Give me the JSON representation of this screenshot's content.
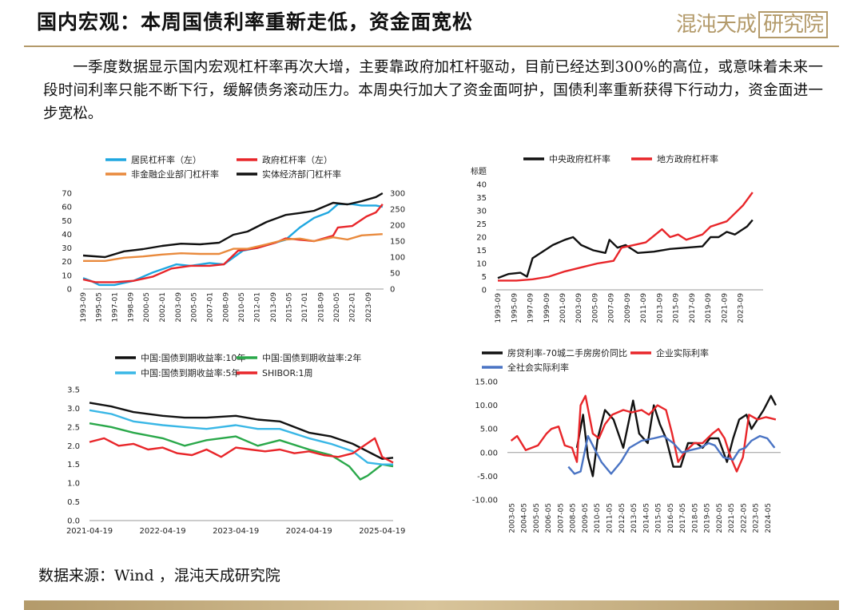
{
  "header": {
    "title": "国内宏观：本周国债利率重新走低，资金面宽松",
    "logo_main": "混沌天成",
    "logo_box": "研究院"
  },
  "body_text": "一季度数据显示国内宏观杠杆率再次大增，主要靠政府加杠杆驱动，目前已经达到300%的高位，或意味着未来一段时间利率只能不断下行，缓解债务滚动压力。本周央行加大了资金面呵护，国债利率重新获得下行动力，资金面进一步宽松。",
  "source": "数据来源：Wind ，混沌天成研究院",
  "colors": {
    "accent": "#b39a6a",
    "blue": "#1fa7e0",
    "red": "#e8262a",
    "orange": "#e98a3d",
    "black": "#111111",
    "green": "#2aa84a",
    "cyan": "#39b7e6",
    "steel": "#4a74c4"
  },
  "chart_data": [
    {
      "type": "line",
      "legend": [
        "居民杠杆率（左）",
        "政府杠杆率（左）",
        "非金融企业部门杠杆率",
        "实体经济部门杠杆率"
      ],
      "yticks_left": [
        "0",
        "10",
        "20",
        "30",
        "40",
        "50",
        "60",
        "70"
      ],
      "yticks_right": [
        "0",
        "50",
        "100",
        "150",
        "200",
        "250",
        "300"
      ],
      "ylim_left": [
        0,
        70
      ],
      "ylim_right": [
        0,
        300
      ],
      "xticks": [
        "1993-09",
        "1995-05",
        "1997-01",
        "1998-09",
        "2000-05",
        "2002-01",
        "2003-09",
        "2005-05",
        "2007-01",
        "2008-09",
        "2010-05",
        "2012-01",
        "2013-09",
        "2015-05",
        "2017-01",
        "2018-09",
        "2020-05",
        "2022-01",
        "2023-09"
      ],
      "series": [
        {
          "name": "居民杠杆率（左）",
          "axis": "left",
          "x": [
            1993.7,
            1994.5,
            1995.4,
            1997.0,
            1999.0,
            2001.0,
            2003.5,
            2005.0,
            2007.0,
            2008.5,
            2010.5,
            2012.0,
            2013.5,
            2015.0,
            2016.5,
            2018.0,
            2019.5,
            2020.5,
            2022.0,
            2023.0,
            2024.5,
            2025.2
          ],
          "values": [
            8,
            6,
            3,
            3,
            6,
            12,
            18,
            17,
            19,
            18,
            28,
            30,
            33,
            36,
            45,
            52,
            56,
            62,
            62,
            61,
            61,
            60
          ]
        },
        {
          "name": "政府杠杆率（左）",
          "axis": "left",
          "x": [
            1993.7,
            1995.0,
            1997.0,
            1999.0,
            2001.0,
            2003.0,
            2005.0,
            2007.0,
            2008.5,
            2010.0,
            2012.0,
            2014.0,
            2015.0,
            2016.5,
            2018.0,
            2020.0,
            2020.5,
            2022.0,
            2023.5,
            2024.5,
            2025.2
          ],
          "values": [
            7,
            5,
            5,
            6,
            9,
            15,
            17,
            17,
            18,
            28,
            30,
            34,
            37,
            36,
            35,
            39,
            45,
            46,
            53,
            56,
            62
          ]
        },
        {
          "name": "非金融企业部门杠杆率",
          "axis": "right",
          "x": [
            1993.7,
            1996.0,
            1998.0,
            2000.0,
            2002.0,
            2004.0,
            2006.0,
            2008.0,
            2009.5,
            2011.0,
            2013.0,
            2015.0,
            2016.5,
            2018.0,
            2020.0,
            2021.5,
            2023.0,
            2025.2
          ],
          "values": [
            88,
            88,
            98,
            102,
            108,
            112,
            110,
            110,
            126,
            126,
            140,
            155,
            158,
            150,
            162,
            155,
            168,
            172
          ]
        },
        {
          "name": "实体经济部门杠杆率",
          "axis": "right",
          "x": [
            1993.7,
            1996.0,
            1998.0,
            2000.0,
            2002.0,
            2004.0,
            2006.0,
            2008.0,
            2009.5,
            2011.0,
            2013.0,
            2015.0,
            2016.5,
            2018.0,
            2020.0,
            2021.5,
            2023.0,
            2024.5,
            2025.2
          ],
          "values": [
            105,
            100,
            118,
            125,
            135,
            142,
            140,
            145,
            170,
            180,
            210,
            232,
            238,
            245,
            270,
            265,
            275,
            288,
            300
          ]
        }
      ]
    },
    {
      "type": "line",
      "legend": [
        "中央政府杠杆率",
        "地方政府杠杆率"
      ],
      "ylabel": "标题",
      "yticks": [
        "0",
        "5",
        "10",
        "15",
        "20",
        "25",
        "30",
        "35",
        "40"
      ],
      "ylim": [
        0,
        40
      ],
      "xticks": [
        "1993-09",
        "1995-09",
        "1997-09",
        "1999-09",
        "2001-09",
        "2003-09",
        "2005-09",
        "2007-09",
        "2009-09",
        "2011-09",
        "2013-09",
        "2015-09",
        "2017-09",
        "2019-09",
        "2021-09",
        "2023-09"
      ],
      "series": [
        {
          "name": "中央政府杠杆率",
          "x": [
            1993.7,
            1995.0,
            1996.5,
            1997.3,
            1998.0,
            1999.0,
            2000.5,
            2002.0,
            2003.0,
            2004.0,
            2005.5,
            2007.0,
            2007.5,
            2008.5,
            2009.5,
            2011.0,
            2013.0,
            2015.0,
            2017.0,
            2019.0,
            2020.0,
            2021.0,
            2022.0,
            2023.0,
            2024.5,
            2025.2
          ],
          "values": [
            4.5,
            6,
            6.5,
            5,
            12,
            14,
            17,
            19,
            20,
            17,
            15,
            14,
            19,
            16,
            17,
            14,
            14.5,
            15.5,
            16,
            16.5,
            20,
            20,
            22,
            21,
            24,
            26.5
          ]
        },
        {
          "name": "地方政府杠杆率",
          "x": [
            1993.7,
            1996.0,
            1998.0,
            2000.0,
            2002.0,
            2004.0,
            2006.0,
            2008.0,
            2009.0,
            2010.5,
            2012.0,
            2014.0,
            2015.0,
            2016.0,
            2017.0,
            2018.0,
            2019.0,
            2020.0,
            2021.0,
            2022.0,
            2023.0,
            2024.0,
            2025.2
          ],
          "values": [
            3.5,
            3.5,
            4,
            5,
            7,
            8.5,
            10,
            11,
            16,
            17,
            18,
            23,
            20,
            21,
            19,
            20,
            21,
            24,
            25,
            26,
            29,
            32,
            37
          ]
        }
      ]
    },
    {
      "type": "line",
      "legend": [
        "中国:国债到期收益率:10年",
        "中国:国债到期收益率:2年",
        "中国:国债到期收益率:5年",
        "SHIBOR:1周"
      ],
      "yticks": [
        "0.0",
        "0.5",
        "1.0",
        "1.5",
        "2.0",
        "2.5",
        "3.0",
        "3.5"
      ],
      "ylim": [
        0,
        3.5
      ],
      "xticks": [
        "2021-04-19",
        "2022-04-19",
        "2023-04-19",
        "2024-04-19",
        "2025-04-19"
      ],
      "series": [
        {
          "name": "中国:国债到期收益率:10年",
          "x": [
            0,
            0.3,
            0.6,
            1.0,
            1.3,
            1.6,
            2.0,
            2.3,
            2.6,
            3.0,
            3.3,
            3.6,
            3.9,
            4.0,
            4.15
          ],
          "values": [
            3.15,
            3.05,
            2.9,
            2.8,
            2.75,
            2.75,
            2.8,
            2.7,
            2.65,
            2.35,
            2.25,
            2.05,
            1.75,
            1.65,
            1.68
          ]
        },
        {
          "name": "中国:国债到期收益率:2年",
          "x": [
            0,
            0.3,
            0.6,
            1.0,
            1.3,
            1.6,
            2.0,
            2.3,
            2.6,
            3.0,
            3.3,
            3.55,
            3.7,
            3.8,
            4.0,
            4.15
          ],
          "values": [
            2.6,
            2.5,
            2.35,
            2.2,
            2.0,
            2.15,
            2.25,
            2.0,
            2.15,
            1.9,
            1.75,
            1.45,
            1.1,
            1.2,
            1.5,
            1.45
          ]
        },
        {
          "name": "中国:国债到期收益率:5年",
          "x": [
            0,
            0.3,
            0.6,
            1.0,
            1.3,
            1.6,
            2.0,
            2.3,
            2.6,
            3.0,
            3.3,
            3.6,
            3.8,
            4.0,
            4.15
          ],
          "values": [
            2.95,
            2.85,
            2.65,
            2.55,
            2.5,
            2.45,
            2.55,
            2.45,
            2.45,
            2.2,
            2.05,
            1.85,
            1.55,
            1.5,
            1.5
          ]
        },
        {
          "name": "SHIBOR:1周",
          "x": [
            0,
            0.2,
            0.4,
            0.6,
            0.8,
            1.0,
            1.2,
            1.4,
            1.6,
            1.8,
            2.0,
            2.2,
            2.4,
            2.6,
            2.8,
            3.0,
            3.2,
            3.4,
            3.6,
            3.75,
            3.9,
            4.0,
            4.15
          ],
          "values": [
            2.1,
            2.2,
            2.0,
            2.05,
            1.9,
            1.95,
            1.8,
            1.75,
            1.9,
            1.7,
            1.95,
            1.9,
            1.85,
            1.9,
            1.8,
            1.85,
            1.75,
            1.7,
            1.8,
            2.0,
            2.2,
            1.7,
            1.55
          ]
        }
      ]
    },
    {
      "type": "line",
      "legend": [
        "房贷利率-70城二手房房价同比",
        "企业实际利率",
        "全社会实际利率"
      ],
      "yticks": [
        "-10.00",
        "-5.00",
        "0.00",
        "5.00",
        "10.00",
        "15.00"
      ],
      "ylim": [
        -10,
        15
      ],
      "xticks": [
        "2003-05",
        "2004-05",
        "2005-05",
        "2006-05",
        "2007-05",
        "2008-05",
        "2009-05",
        "2010-05",
        "2011-05",
        "2012-05",
        "2013-05",
        "2014-05",
        "2015-05",
        "2016-05",
        "2017-05",
        "2018-05",
        "2019-05",
        "2020-05",
        "2021-05",
        "2022-05",
        "2023-05",
        "2024-05"
      ],
      "series": [
        {
          "name": "房贷利率-70城二手房房价同比",
          "x": [
            2008.7,
            2009.2,
            2009.6,
            2010.0,
            2010.4,
            2011.0,
            2011.7,
            2012.5,
            2013.3,
            2013.8,
            2014.5,
            2015.0,
            2015.5,
            2016.0,
            2016.6,
            2017.2,
            2017.8,
            2018.5,
            2019.0,
            2019.6,
            2020.3,
            2021.0,
            2021.5,
            2022.0,
            2022.6,
            2023.0,
            2023.5,
            2024.0,
            2024.6,
            2025.0
          ],
          "values": [
            1,
            8,
            -1,
            -5,
            3,
            9,
            7,
            1,
            11,
            4,
            2,
            10,
            6,
            3,
            -3,
            -3,
            2,
            2,
            1,
            3,
            3,
            -2,
            3,
            7,
            8,
            5,
            7,
            9,
            12,
            10
          ]
        },
        {
          "name": "企业实际利率",
          "x": [
            2003.3,
            2003.8,
            2004.5,
            2005.5,
            2006.2,
            2006.6,
            2007.2,
            2007.7,
            2008.3,
            2008.7,
            2009.0,
            2009.4,
            2010.0,
            2010.5,
            2011.0,
            2011.6,
            2012.5,
            2013.2,
            2014.0,
            2014.6,
            2015.3,
            2016.0,
            2016.5,
            2017.0,
            2017.5,
            2018.3,
            2019.0,
            2019.8,
            2020.3,
            2020.8,
            2021.3,
            2021.8,
            2022.3,
            2022.8,
            2023.5,
            2024.2,
            2025.0
          ],
          "values": [
            2.5,
            3.5,
            0.5,
            1.5,
            4,
            5,
            5.5,
            1.5,
            1,
            -2,
            10,
            12,
            4,
            3,
            6,
            8,
            9,
            8.5,
            9,
            8,
            10,
            9,
            4,
            -2,
            0,
            2,
            2,
            4,
            5,
            3,
            -1,
            -4,
            -1,
            8,
            7,
            7.5,
            7
          ]
        },
        {
          "name": "全社会实际利率",
          "x": [
            2008.0,
            2008.5,
            2009.0,
            2009.6,
            2010.1,
            2010.7,
            2011.5,
            2012.3,
            2013.0,
            2014.0,
            2015.0,
            2015.8,
            2016.6,
            2017.3,
            2018.0,
            2018.8,
            2019.5,
            2020.0,
            2020.7,
            2021.5,
            2022.0,
            2022.5,
            2023.0,
            2023.7,
            2024.3,
            2024.9
          ],
          "values": [
            -3,
            -4.5,
            -4,
            3.5,
            1,
            -2,
            -4.5,
            -2,
            1,
            2.5,
            3,
            3.5,
            2,
            0,
            0.5,
            1,
            2,
            1.5,
            -1,
            -1.5,
            0.5,
            1,
            2.5,
            3.5,
            3,
            1
          ]
        }
      ]
    }
  ]
}
